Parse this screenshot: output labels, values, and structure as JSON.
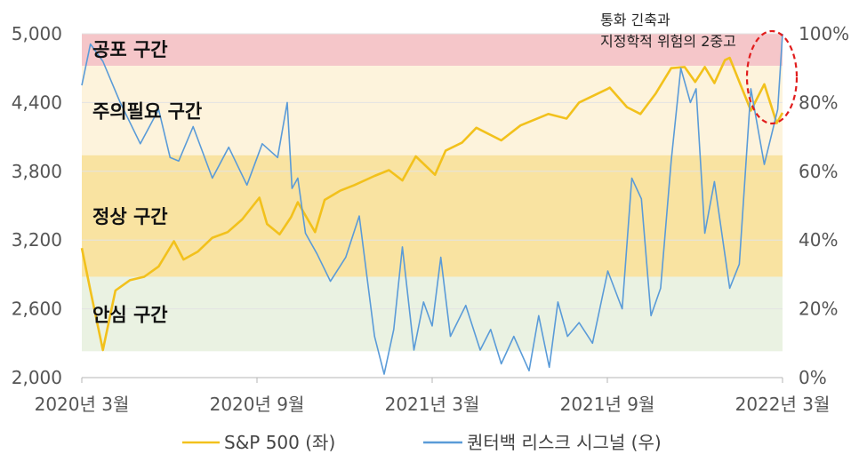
{
  "chart_data": {
    "type": "line",
    "title": "",
    "x_ticks": [
      "2020년 3월",
      "2020년 9월",
      "2021년 3월",
      "2021년 9월",
      "2022년 3월"
    ],
    "y_left": {
      "label": "",
      "ticks": [
        "2,000",
        "2,600",
        "3,200",
        "3,800",
        "4,400",
        "5,000"
      ],
      "range": [
        2000,
        5000
      ]
    },
    "y_right": {
      "label": "",
      "ticks": [
        "0%",
        "20%",
        "40%",
        "60%",
        "80%",
        "100%"
      ],
      "range": [
        0,
        100
      ]
    },
    "zones": [
      {
        "label": "공포 구간",
        "from": 4720,
        "to": 5000,
        "color": "#f5c6c9"
      },
      {
        "label": "주의필요 구간",
        "from": 3940,
        "to": 4720,
        "color": "#fdf3dc"
      },
      {
        "label": "정상 구간",
        "from": 2880,
        "to": 3940,
        "color": "#f9e3a1"
      },
      {
        "label": "안심 구간",
        "from": 2230,
        "to": 2880,
        "color": "#eaf2e2"
      }
    ],
    "annotation": {
      "lines": [
        "통화 긴축과",
        "지정학적 위험의 2중고"
      ]
    },
    "series": [
      {
        "name": "S&P 500 (좌)",
        "axis": "left",
        "color": "#f2c11c",
        "x": [
          "2020-03-01",
          "2020-03-10",
          "2020-03-23",
          "2020-04-05",
          "2020-04-20",
          "2020-05-05",
          "2020-05-20",
          "2020-06-05",
          "2020-06-15",
          "2020-06-30",
          "2020-07-15",
          "2020-07-31",
          "2020-08-15",
          "2020-09-02",
          "2020-09-10",
          "2020-09-23",
          "2020-10-05",
          "2020-10-12",
          "2020-10-30",
          "2020-11-09",
          "2020-11-25",
          "2020-12-10",
          "2020-12-31",
          "2021-01-15",
          "2021-01-29",
          "2021-02-12",
          "2021-03-04",
          "2021-03-15",
          "2021-04-01",
          "2021-04-16",
          "2021-05-12",
          "2021-06-01",
          "2021-06-30",
          "2021-07-19",
          "2021-08-01",
          "2021-08-31",
          "2021-09-02",
          "2021-09-20",
          "2021-10-04",
          "2021-10-20",
          "2021-11-05",
          "2021-11-19",
          "2021-11-30",
          "2021-12-10",
          "2021-12-20",
          "2021-12-31",
          "2022-01-05",
          "2022-01-27",
          "2022-02-10",
          "2022-02-23",
          "2022-03-01"
        ],
        "values": [
          3130,
          2760,
          2240,
          2760,
          2850,
          2880,
          2970,
          3190,
          3030,
          3100,
          3220,
          3270,
          3380,
          3570,
          3340,
          3250,
          3400,
          3530,
          3270,
          3550,
          3630,
          3680,
          3760,
          3810,
          3720,
          3930,
          3770,
          3980,
          4050,
          4180,
          4070,
          4200,
          4300,
          4260,
          4400,
          4520,
          4530,
          4360,
          4300,
          4480,
          4700,
          4710,
          4580,
          4710,
          4570,
          4770,
          4790,
          4330,
          4560,
          4220,
          4310
        ]
      },
      {
        "name": "퀀터백 리스크 시그널 (우)",
        "axis": "right",
        "color": "#5a9bd8",
        "x": [
          "2020-03-01",
          "2020-03-10",
          "2020-03-23",
          "2020-04-10",
          "2020-05-01",
          "2020-05-20",
          "2020-06-01",
          "2020-06-10",
          "2020-06-25",
          "2020-07-15",
          "2020-08-01",
          "2020-08-20",
          "2020-09-05",
          "2020-09-21",
          "2020-10-01",
          "2020-10-06",
          "2020-10-12",
          "2020-10-20",
          "2020-11-01",
          "2020-11-15",
          "2020-12-01",
          "2020-12-15",
          "2020-12-31",
          "2021-01-10",
          "2021-01-20",
          "2021-01-29",
          "2021-02-10",
          "2021-02-20",
          "2021-03-01",
          "2021-03-10",
          "2021-03-20",
          "2021-04-05",
          "2021-04-20",
          "2021-05-01",
          "2021-05-12",
          "2021-05-25",
          "2021-06-10",
          "2021-06-20",
          "2021-07-01",
          "2021-07-10",
          "2021-07-20",
          "2021-08-01",
          "2021-08-15",
          "2021-08-31",
          "2021-09-15",
          "2021-09-25",
          "2021-10-05",
          "2021-10-15",
          "2021-10-25",
          "2021-11-05",
          "2021-11-15",
          "2021-11-25",
          "2021-12-01",
          "2021-12-10",
          "2021-12-20",
          "2022-01-05",
          "2022-01-15",
          "2022-01-27",
          "2022-02-10",
          "2022-02-24",
          "2022-03-01"
        ],
        "values": [
          85,
          97,
          92,
          80,
          68,
          78,
          64,
          63,
          73,
          58,
          67,
          56,
          68,
          64,
          80,
          55,
          58,
          42,
          36,
          28,
          35,
          47,
          12,
          1,
          14,
          38,
          8,
          22,
          15,
          35,
          12,
          21,
          8,
          14,
          4,
          12,
          2,
          18,
          3,
          22,
          12,
          16,
          10,
          31,
          20,
          58,
          52,
          18,
          26,
          63,
          90,
          80,
          84,
          42,
          57,
          26,
          33,
          84,
          62,
          78,
          100
        ]
      }
    ]
  }
}
